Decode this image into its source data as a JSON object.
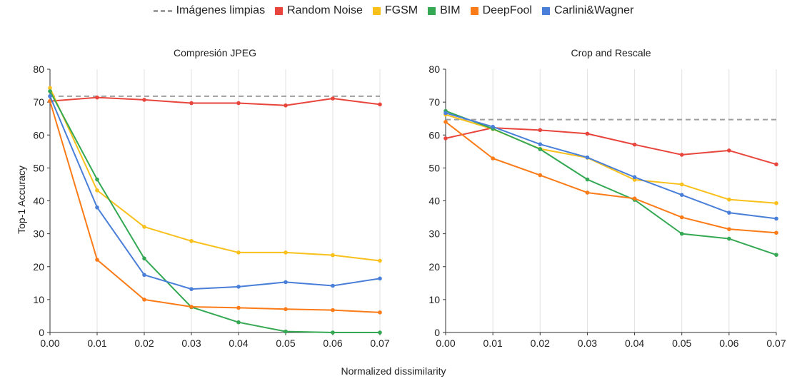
{
  "legend": [
    {
      "name": "Imágenes limpias",
      "color": "#9e9e9e",
      "style": "dashed"
    },
    {
      "name": "Random Noise",
      "color": "#e8453c",
      "style": "solid"
    },
    {
      "name": "FGSM",
      "color": "#f9c01b",
      "style": "solid"
    },
    {
      "name": "BIM",
      "color": "#34a853",
      "style": "solid"
    },
    {
      "name": "DeepFool",
      "color": "#fa7b17",
      "style": "solid"
    },
    {
      "name": "Carlini&Wagner",
      "color": "#4a7fd9",
      "style": "solid"
    }
  ],
  "shared_xlabel": "Normalized dissimilarity",
  "shared_ylabel": "Top-1 Accuracy",
  "chart_data": [
    {
      "type": "line",
      "title": "Compresión JPEG",
      "x": [
        0.0,
        0.01,
        0.02,
        0.03,
        0.04,
        0.05,
        0.06,
        0.07
      ],
      "x_tick_labels": [
        "0.00",
        "0.01",
        "0.02",
        "0.03",
        "0.04",
        "0.05",
        "0.06",
        "0.07"
      ],
      "ylim": [
        0,
        80
      ],
      "y_ticks": [
        0,
        10,
        20,
        30,
        40,
        50,
        60,
        70,
        80
      ],
      "grid": "vertical",
      "series": [
        {
          "name": "Imágenes limpias",
          "color": "#9e9e9e",
          "dashed": true,
          "markers": false,
          "values": [
            71.8,
            71.8,
            71.8,
            71.8,
            71.8,
            71.8,
            71.8,
            71.8
          ]
        },
        {
          "name": "Random Noise",
          "color": "#e8453c",
          "values": [
            70.3,
            71.4,
            70.7,
            69.7,
            69.7,
            69.0,
            71.1,
            69.3
          ]
        },
        {
          "name": "FGSM",
          "color": "#f9c01b",
          "values": [
            74.3,
            43.2,
            32.1,
            27.8,
            24.3,
            24.3,
            23.5,
            21.8
          ]
        },
        {
          "name": "BIM",
          "color": "#34a853",
          "values": [
            73.3,
            46.5,
            22.5,
            7.7,
            3.1,
            0.3,
            0.0,
            0.0
          ]
        },
        {
          "name": "DeepFool",
          "color": "#fa7b17",
          "values": [
            70.3,
            22.1,
            10.0,
            7.8,
            7.5,
            7.1,
            6.8,
            6.1
          ]
        },
        {
          "name": "Carlini&Wagner",
          "color": "#4a7fd9",
          "values": [
            71.8,
            38.0,
            17.5,
            13.2,
            13.9,
            15.3,
            14.2,
            16.4
          ]
        }
      ]
    },
    {
      "type": "line",
      "title": "Crop and Rescale",
      "x": [
        0.0,
        0.01,
        0.02,
        0.03,
        0.04,
        0.05,
        0.06,
        0.07
      ],
      "x_tick_labels": [
        "0.00",
        "0.01",
        "0.02",
        "0.03",
        "0.04",
        "0.05",
        "0.06",
        "0.07"
      ],
      "ylim": [
        0,
        80
      ],
      "y_ticks": [
        0,
        10,
        20,
        30,
        40,
        50,
        60,
        70,
        80
      ],
      "grid": "vertical",
      "series": [
        {
          "name": "Imágenes limpias",
          "color": "#9e9e9e",
          "dashed": true,
          "markers": false,
          "values": [
            64.7,
            64.7,
            64.7,
            64.7,
            64.7,
            64.7,
            64.7,
            64.7
          ]
        },
        {
          "name": "Random Noise",
          "color": "#e8453c",
          "values": [
            59.0,
            62.2,
            61.5,
            60.4,
            57.1,
            54.0,
            55.3,
            51.1
          ]
        },
        {
          "name": "FGSM",
          "color": "#f9c01b",
          "values": [
            66.2,
            61.8,
            55.8,
            53.1,
            46.4,
            45.0,
            40.4,
            39.3
          ]
        },
        {
          "name": "BIM",
          "color": "#34a853",
          "values": [
            67.3,
            61.9,
            55.7,
            46.5,
            40.3,
            30.0,
            28.5,
            23.6
          ]
        },
        {
          "name": "DeepFool",
          "color": "#fa7b17",
          "values": [
            64.0,
            52.9,
            47.8,
            42.5,
            40.7,
            35.0,
            31.4,
            30.3
          ]
        },
        {
          "name": "Carlini&Wagner",
          "color": "#4a7fd9",
          "values": [
            66.7,
            62.5,
            57.2,
            53.2,
            47.2,
            41.8,
            36.4,
            34.6
          ]
        }
      ]
    }
  ]
}
